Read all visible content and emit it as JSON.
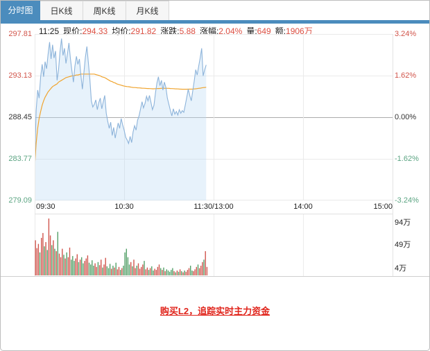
{
  "tabs": [
    {
      "label": "分时图",
      "active": true
    },
    {
      "label": "日K线",
      "active": false
    },
    {
      "label": "周K线",
      "active": false
    },
    {
      "label": "月K线",
      "active": false
    }
  ],
  "info": {
    "time": "11:25",
    "items": [
      {
        "label": "现价:",
        "value": "294.33"
      },
      {
        "label": "均价:",
        "value": "291.82"
      },
      {
        "label": "涨跌:",
        "value": "5.88"
      },
      {
        "label": "涨幅:",
        "value": "2.04%"
      },
      {
        "label": "量:",
        "value": "649"
      },
      {
        "label": "额:",
        "value": "1906万"
      }
    ]
  },
  "chart_data": {
    "type": "line",
    "title": "分时图 (intraday price with average line and volume)",
    "x_axis": {
      "labels": [
        "09:30",
        "10:30",
        "11:30/13:00",
        "14:00",
        "15:00"
      ],
      "total_minutes": 240
    },
    "price_axis": {
      "left_labels": [
        "297.81",
        "293.13",
        "288.45",
        "283.77",
        "279.09"
      ],
      "right_labels": [
        "3.24%",
        "1.62%",
        "0.00%",
        "-1.62%",
        "-3.24%"
      ],
      "max": 297.81,
      "min": 279.09,
      "prev_close": 288.45,
      "grid": true
    },
    "volume_axis": {
      "labels": [
        "94万",
        "49万",
        "4万"
      ],
      "max": 94
    },
    "series": [
      {
        "name": "price",
        "color": "#8cb3da",
        "fill": "rgba(186,219,243,0.35)",
        "values": [
          282.8,
          289.2,
          291.5,
          290.6,
          293.0,
          294.4,
          293.0,
          294.7,
          293.9,
          295.5,
          296.9,
          295.0,
          296.6,
          295.1,
          295.9,
          292.6,
          293.8,
          295.8,
          297.3,
          295.4,
          296.2,
          294.5,
          295.6,
          296.8,
          295.0,
          293.6,
          292.4,
          294.2,
          295.3,
          294.4,
          295.0,
          293.2,
          291.6,
          293.5,
          295.2,
          296.4,
          294.6,
          292.8,
          290.3,
          289.6,
          289.9,
          290.4,
          289.3,
          290.1,
          290.6,
          289.4,
          290.2,
          290.9,
          288.9,
          288.0,
          287.2,
          287.9,
          286.4,
          287.3,
          286.1,
          287.0,
          287.8,
          287.2,
          288.3,
          287.6,
          287.0,
          286.2,
          285.9,
          285.5,
          286.3,
          285.6,
          286.8,
          287.5,
          287.0,
          288.1,
          288.6,
          289.4,
          290.2,
          289.5,
          290.0,
          290.8,
          290.3,
          290.9,
          290.1,
          289.3,
          289.8,
          291.2,
          292.3,
          293.0,
          292.0,
          292.6,
          291.5,
          292.4,
          291.8,
          290.6,
          289.9,
          289.2,
          288.6,
          289.4,
          288.8,
          289.1,
          288.7,
          289.3,
          288.9,
          289.2,
          289.0,
          289.8,
          290.7,
          291.6,
          290.9,
          290.3,
          291.4,
          292.5,
          293.8,
          293.2,
          294.2,
          295.1,
          296.2,
          293.1,
          293.8,
          294.33
        ]
      },
      {
        "name": "avg",
        "color": "#f0a42e",
        "values": [
          283.0,
          285.5,
          287.2,
          288.3,
          289.1,
          289.8,
          290.3,
          290.7,
          291.0,
          291.3,
          291.5,
          291.7,
          291.9,
          292.0,
          292.1,
          292.2,
          292.4,
          292.5,
          292.6,
          292.7,
          292.8,
          292.9,
          292.95,
          293.0,
          293.05,
          293.1,
          293.1,
          293.15,
          293.2,
          293.2,
          293.25,
          293.3,
          293.3,
          293.3,
          293.3,
          293.3,
          293.3,
          293.3,
          293.3,
          293.3,
          293.3,
          293.25,
          293.2,
          293.15,
          293.1,
          293.0,
          292.95,
          292.9,
          292.8,
          292.7,
          292.6,
          292.5,
          292.45,
          292.35,
          292.3,
          292.2,
          292.15,
          292.1,
          292.05,
          292.0,
          291.95,
          291.92,
          291.9,
          291.88,
          291.85,
          291.82,
          291.8,
          291.79,
          291.78,
          291.76,
          291.75,
          291.73,
          291.72,
          291.71,
          291.7,
          291.69,
          291.68,
          291.67,
          291.66,
          291.65,
          291.65,
          291.66,
          291.67,
          291.68,
          291.69,
          291.7,
          291.7,
          291.7,
          291.7,
          291.7,
          291.7,
          291.68,
          291.67,
          291.66,
          291.65,
          291.64,
          291.63,
          291.62,
          291.61,
          291.6,
          291.6,
          291.6,
          291.6,
          291.61,
          291.61,
          291.61,
          291.62,
          291.63,
          291.65,
          291.67,
          291.7,
          291.72,
          291.75,
          291.78,
          291.8,
          291.82
        ]
      }
    ],
    "volume": {
      "unit": "万",
      "up_color": "#d0544c",
      "down_color": "#53a068",
      "values": [
        58,
        45,
        52,
        38,
        62,
        70,
        48,
        55,
        42,
        94,
        66,
        50,
        58,
        44,
        40,
        72,
        36,
        30,
        44,
        34,
        28,
        38,
        30,
        46,
        26,
        32,
        24,
        28,
        35,
        22,
        26,
        30,
        20,
        24,
        28,
        33,
        21,
        18,
        25,
        16,
        20,
        14,
        22,
        17,
        26,
        13,
        18,
        29,
        15,
        12,
        19,
        11,
        16,
        13,
        21,
        10,
        14,
        9,
        12,
        16,
        38,
        44,
        30,
        18,
        22,
        15,
        26,
        12,
        16,
        20,
        11,
        14,
        18,
        24,
        10,
        13,
        9,
        12,
        15,
        8,
        11,
        9,
        14,
        18,
        12,
        9,
        13,
        7,
        10,
        8,
        6,
        9,
        12,
        7,
        5,
        8,
        6,
        10,
        7,
        5,
        8,
        6,
        9,
        12,
        16,
        8,
        7,
        10,
        14,
        18,
        12,
        16,
        22,
        26,
        40,
        14
      ]
    }
  },
  "footer": {
    "link": "购买L2，追踪实时主力资金"
  },
  "colors": {
    "accent_blue": "#4b8cbd",
    "up_red": "#d1544a",
    "down_green": "#5ba482",
    "price_line": "#8cb3da",
    "avg_line": "#f0a42e",
    "link_red": "#e0241b"
  }
}
